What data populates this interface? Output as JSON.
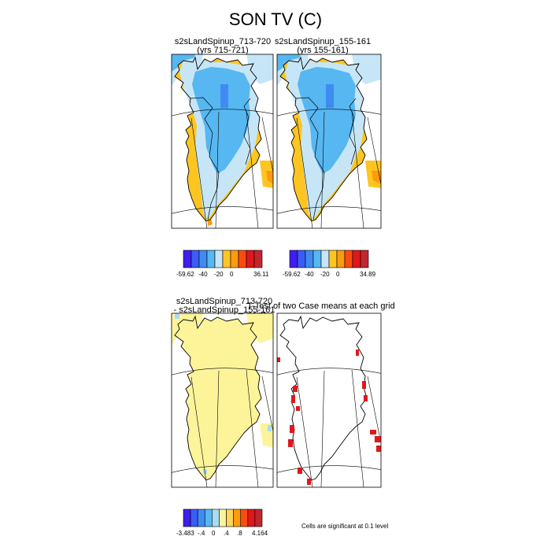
{
  "title": "SON TV (C)",
  "panels": [
    {
      "id": "p1",
      "title": "s2sLandSpinup_713-720",
      "subtitle": "(yrs 715-721)"
    },
    {
      "id": "p2",
      "title": "s2sLandSpinup_155-161",
      "subtitle": "(yrs 155-161)"
    },
    {
      "id": "p3",
      "title": "s2sLandSpinup_713-720",
      "subtitle": "- s2sLandSpinup_155-161"
    },
    {
      "id": "p4",
      "title": "T-Test of two Case means at each grid point",
      "subtitle": ""
    }
  ],
  "colorbars": [
    {
      "labels": [
        "-59.62",
        "-40",
        "-20",
        "0",
        "36.11"
      ],
      "colors": [
        "#3d1eef",
        "#3b5cf5",
        "#3f8bf2",
        "#56b7f1",
        "#c6e6f7",
        "#fec521",
        "#fe9a10",
        "#fb4c10",
        "#e0171c",
        "#c1272d"
      ]
    },
    {
      "labels": [
        "-59.62",
        "-40",
        "-20",
        "0",
        "34.89"
      ],
      "colors": [
        "#3d1eef",
        "#3b5cf5",
        "#3f8bf2",
        "#56b7f1",
        "#c6e6f7",
        "#fec521",
        "#fe9a10",
        "#fb4c10",
        "#e0171c",
        "#c1272d"
      ]
    },
    {
      "labels": [
        "-3.483",
        "-.4",
        "0",
        ".4",
        ".8",
        "4.164"
      ],
      "colors": [
        "#3d1eef",
        "#3b5cf5",
        "#3f8bf2",
        "#56b7f1",
        "#a8dcf5",
        "#fdf49a",
        "#fed45a",
        "#fe9a10",
        "#fb4c10",
        "#e0171c",
        "#c1272d"
      ]
    }
  ],
  "significance_note": "Cells are significant at 0.1 level",
  "chart_data": [
    {
      "type": "heatmap",
      "title": "s2sLandSpinup_713-720",
      "subtitle": "(yrs 715-721)",
      "variable": "SON TV (C)",
      "range": [
        -59.62,
        36.11
      ],
      "colorbar_labels": [
        "-59.62",
        "-40",
        "-20",
        "0",
        "36.11"
      ]
    },
    {
      "type": "heatmap",
      "title": "s2sLandSpinup_155-161",
      "subtitle": "(yrs 155-161)",
      "variable": "SON TV (C)",
      "range": [
        -59.62,
        34.89
      ],
      "colorbar_labels": [
        "-59.62",
        "-40",
        "-20",
        "0",
        "34.89"
      ]
    },
    {
      "type": "heatmap",
      "title": "s2sLandSpinup_713-720",
      "subtitle": "- s2sLandSpinup_155-161",
      "variable": "SON TV (C)",
      "range": [
        -3.483,
        4.164
      ],
      "colorbar_labels": [
        "-3.483",
        "-.4",
        "0",
        ".4",
        ".8",
        "4.164"
      ]
    },
    {
      "type": "heatmap",
      "title": "T-Test of two Case means at each grid point",
      "note": "Cells are significant at 0.1 level"
    }
  ]
}
